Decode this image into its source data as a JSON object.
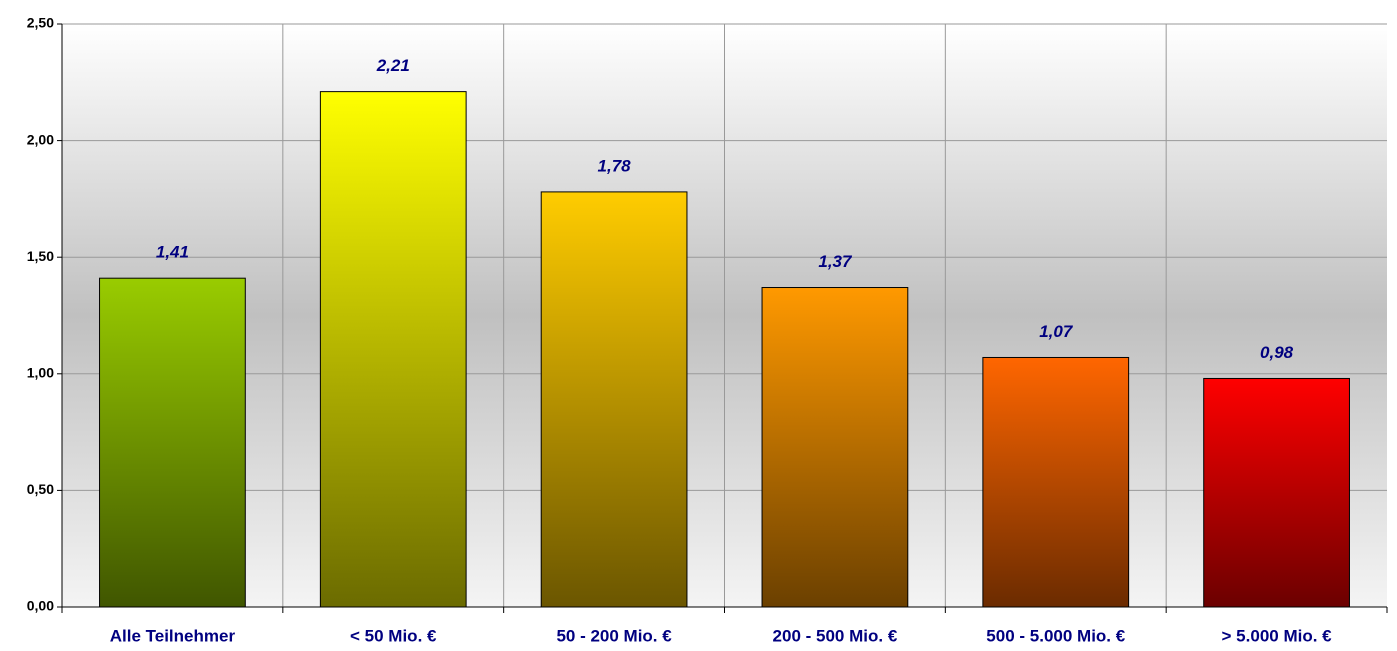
{
  "chart_data": {
    "type": "bar",
    "categories": [
      "Alle Teilnehmer",
      "< 50 Mio. €",
      "50 - 200 Mio. €",
      "200 - 500 Mio. €",
      "500 - 5.000 Mio. €",
      "> 5.000 Mio. €"
    ],
    "values": [
      1.41,
      2.21,
      1.78,
      1.37,
      1.07,
      0.98
    ],
    "value_labels": [
      "1,41",
      "2,21",
      "1,78",
      "1,37",
      "1,07",
      "0,98"
    ],
    "colors": [
      "#99cc00",
      "#ffff00",
      "#ffcc00",
      "#ff9900",
      "#ff6600",
      "#ff0000"
    ],
    "ylim": [
      0,
      2.5
    ],
    "yticks": [
      {
        "value": 0,
        "label": "0,00"
      },
      {
        "value": 0.5,
        "label": "0,50"
      },
      {
        "value": 1,
        "label": "1,00"
      },
      {
        "value": 1.5,
        "label": "1,50"
      },
      {
        "value": 2,
        "label": "2,00"
      },
      {
        "value": 2.5,
        "label": "2,50"
      }
    ],
    "grid": true
  }
}
